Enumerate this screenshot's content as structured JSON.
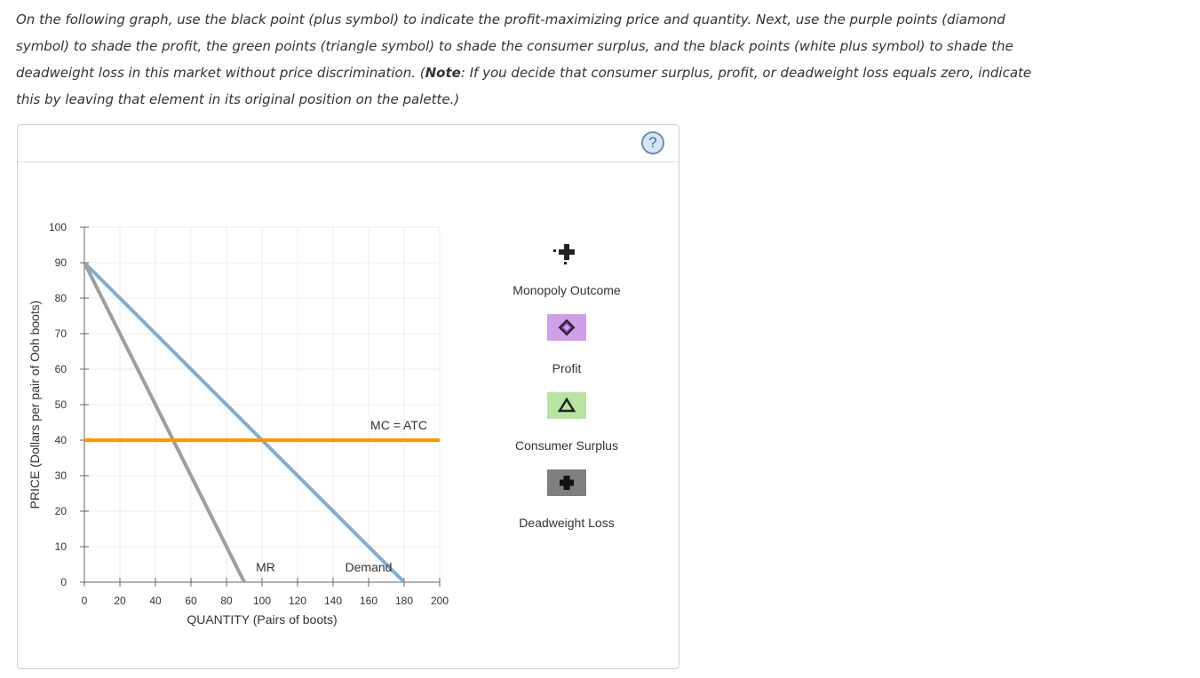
{
  "instructions": {
    "part1": "On the following graph, use the black point (plus symbol) to indicate the profit-maximizing price and quantity. Next, use the purple points (diamond symbol) to shade the profit, the green points (triangle symbol) to shade the consumer surplus, and the black points (white plus symbol) to shade the deadweight loss in this market without price discrimination. (",
    "note_label": "Note",
    "part2": ": If you decide that consumer surplus, profit, or deadweight loss equals zero, indicate this by leaving that element in its original position on the palette.)"
  },
  "help": {
    "label": "?"
  },
  "palette": {
    "monopoly": {
      "label": "Monopoly Outcome",
      "icon": "black-plus-icon"
    },
    "profit": {
      "label": "Profit",
      "icon": "purple-diamond-icon",
      "color": "#cf9fe8"
    },
    "consumer_surplus": {
      "label": "Consumer Surplus",
      "icon": "green-triangle-icon",
      "color": "#b7e4a0"
    },
    "deadweight_loss": {
      "label": "Deadweight Loss",
      "icon": "white-plus-icon",
      "color": "#7f7f7f"
    }
  },
  "chart_data": {
    "type": "line",
    "xlabel": "QUANTITY (Pairs of boots)",
    "ylabel": "PRICE (Dollars per pair of Ooh boots)",
    "xlim": [
      0,
      200
    ],
    "ylim": [
      0,
      100
    ],
    "xticks": [
      0,
      20,
      40,
      60,
      80,
      100,
      120,
      140,
      160,
      180,
      200
    ],
    "yticks": [
      0,
      10,
      20,
      30,
      40,
      50,
      60,
      70,
      80,
      90,
      100
    ],
    "grid": true,
    "series": [
      {
        "name": "Demand",
        "color": "#7fadd6",
        "x": [
          0,
          180
        ],
        "y": [
          90,
          0
        ],
        "label_at": [
          160,
          3
        ]
      },
      {
        "name": "MR",
        "color": "#9e9e9e",
        "x": [
          0,
          90
        ],
        "y": [
          90,
          0
        ],
        "label_at": [
          102,
          3
        ]
      },
      {
        "name": "MC = ATC",
        "color": "#ff9800",
        "x": [
          0,
          200
        ],
        "y": [
          40,
          40
        ],
        "label_at": [
          177,
          43
        ]
      }
    ]
  }
}
